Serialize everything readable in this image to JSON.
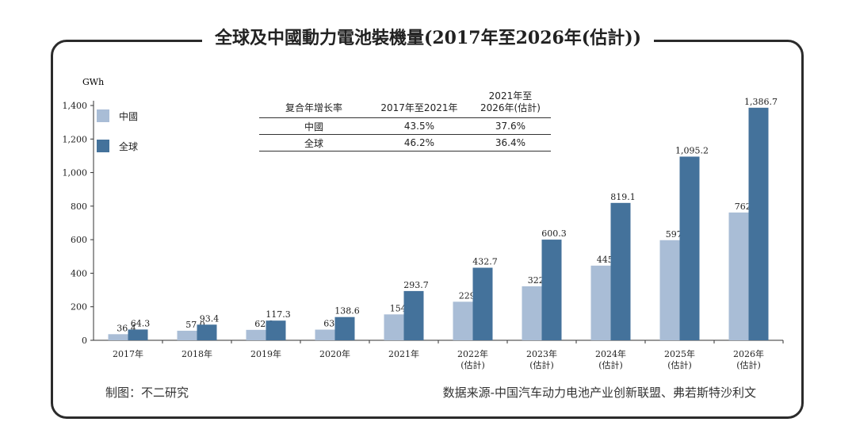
{
  "chart_data": {
    "type": "bar",
    "title": "全球及中國動力電池裝機量(2017年至2026年(估計))",
    "ylabel": "GWh",
    "ylim": [
      0,
      1400
    ],
    "yticks": [
      "0",
      "200",
      "400",
      "600",
      "800",
      "1,000",
      "1,200",
      "1,400"
    ],
    "categories": [
      [
        "2017年"
      ],
      [
        "2018年"
      ],
      [
        "2019年"
      ],
      [
        "2020年"
      ],
      [
        "2021年"
      ],
      [
        "2022年",
        "(估計)"
      ],
      [
        "2023年",
        "(估計)"
      ],
      [
        "2024年",
        "(估計)"
      ],
      [
        "2025年",
        "(估計)"
      ],
      [
        "2026年",
        "(估計)"
      ]
    ],
    "series": [
      {
        "name": "中國",
        "color": "#a9bdd6",
        "values": [
          36.4,
          57.0,
          62.2,
          63.6,
          154.5,
          229.9,
          322.0,
          445.2,
          597.0,
          762.0
        ],
        "labels": [
          "36.4",
          "57.0",
          "62.2",
          "63.6",
          "154.5",
          "229.9",
          "322.0",
          "445.2",
          "597.0",
          "762.0"
        ]
      },
      {
        "name": "全球",
        "color": "#44729b",
        "values": [
          64.3,
          93.4,
          117.3,
          138.6,
          293.7,
          432.7,
          600.3,
          819.1,
          1095.2,
          1386.7
        ],
        "labels": [
          "64.3",
          "93.4",
          "117.3",
          "138.6",
          "293.7",
          "432.7",
          "600.3",
          "819.1",
          "1,095.2",
          "1,386.7"
        ]
      }
    ],
    "legend": "top-left",
    "grid": false
  },
  "growth_table": {
    "header": [
      "复合年增长率",
      "2017年至2021年",
      "2021年至",
      "2026年(估計)"
    ],
    "rows": [
      {
        "region": "中國",
        "v1": "43.5%",
        "v2": "37.6%"
      },
      {
        "region": "全球",
        "v1": "46.2%",
        "v2": "36.4%"
      }
    ]
  },
  "footer": {
    "left": "制图：不二研究",
    "right": "数据来源-中国汽车动力电池产业创新联盟、弗若斯特沙利文"
  }
}
